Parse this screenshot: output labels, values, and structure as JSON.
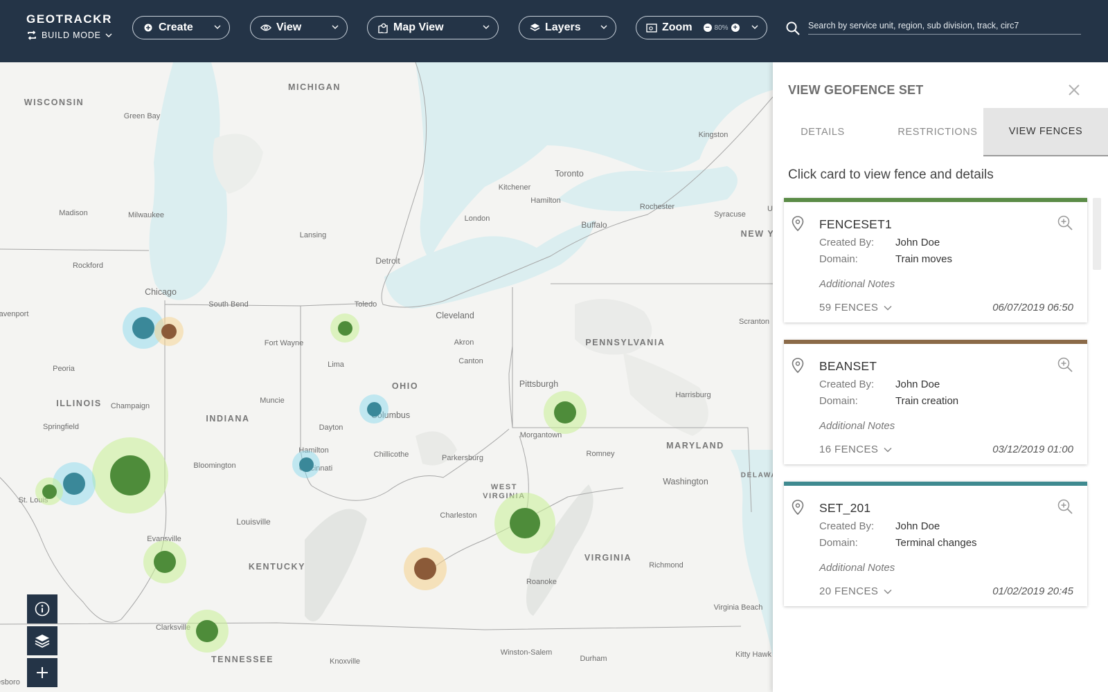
{
  "app": {
    "brand": "GEOTRACKR",
    "mode": "BUILD MODE"
  },
  "toolbar": {
    "create": "Create",
    "view": "View",
    "map_view": "Map View",
    "layers": "Layers",
    "zoom": "Zoom",
    "zoom_level": "80%",
    "search_placeholder": "Search by service unit, region, sub division, track, circ7"
  },
  "map": {
    "state_labels": {
      "wisconsin": "WISCONSIN",
      "michigan": "MICHIGAN",
      "illinois": "ILLINOIS",
      "indiana": "INDIANA",
      "ohio": "OHIO",
      "pennsylvania": "PENNSYLVANIA",
      "new_york": "NEW Y",
      "maryland": "MARYLAND",
      "delaware": "DELAWA",
      "west_virginia_1": "WEST",
      "west_virginia_2": "VIRGINIA",
      "kentucky": "KENTUCKY",
      "virginia": "VIRGINIA",
      "tennessee": "TENNESSEE"
    },
    "city_labels": {
      "green_bay": "Green Bay",
      "madison": "Madison",
      "milwaukee": "Milwaukee",
      "rockford": "Rockford",
      "chicago": "Chicago",
      "davenport": "avenport",
      "peoria": "Peoria",
      "champaign": "Champaign",
      "springfield": "Springfield",
      "st_louis": "St. Louis",
      "south_bend": "South Bend",
      "fort_wayne": "Fort Wayne",
      "muncie": "Muncie",
      "bloomington": "Bloomington",
      "lansing": "Lansing",
      "detroit": "Detroit",
      "toledo": "Toledo",
      "lima": "Lima",
      "dayton": "Dayton",
      "hamilton": "Hamilton",
      "cincinnati": "Cincinnati",
      "columbus": "Columbus",
      "chillicothe": "Chillicothe",
      "cleveland": "Cleveland",
      "akron": "Akron",
      "canton": "Canton",
      "parkersburg": "Parkersburg",
      "charleston": "Charleston",
      "louisville": "Louisville",
      "evansville": "Evansville",
      "clarksville": "Clarksville",
      "knoxville": "Knoxville",
      "kitchener": "Kitchener",
      "london": "London",
      "hamilton_on": "Hamilton",
      "toronto": "Toronto",
      "kingston": "Kingston",
      "buffalo": "Buffalo",
      "rochester": "Rochester",
      "syracuse": "Syracuse",
      "scranton": "Scranton",
      "pittsburgh": "Pittsburgh",
      "harrisburg": "Harrisburg",
      "morgantown": "Morgantown",
      "romney": "Romney",
      "washington": "Washington",
      "richmond": "Richmond",
      "roanoke": "Roanoke",
      "virginia_beach": "Virginia Beach",
      "winston_salem": "Winston-Salem",
      "durham": "Durham",
      "kitty_hawk": "Kitty Hawk",
      "u_edge": "U",
      "nesboro": "esboro"
    },
    "colors": {
      "green": "#4e8c3a",
      "teal": "#3a8899",
      "brown": "#8b5a38"
    },
    "controls": [
      "info-icon",
      "layers-icon",
      "plus-icon"
    ]
  },
  "panel": {
    "title": "VIEW GEOFENCE SET",
    "tabs": [
      "DETAILS",
      "RESTRICTIONS",
      "VIEW FENCES"
    ],
    "active_tab": "VIEW FENCES",
    "hint": "Click card to view fence and details",
    "created_by_label": "Created By:",
    "domain_label": "Domain:",
    "notes_label": "Additional Notes",
    "cards": [
      {
        "name": "FENCESET1",
        "created_by": "John Doe",
        "domain": "Train moves",
        "fences": "59 FENCES",
        "date": "06/07/2019 06:50",
        "accent": "#5b8c47"
      },
      {
        "name": "BEANSET",
        "created_by": "John Doe",
        "domain": "Train creation",
        "fences": "16 FENCES",
        "date": "03/12/2019 01:00",
        "accent": "#8b6a48"
      },
      {
        "name": "SET_201",
        "created_by": "John Doe",
        "domain": "Terminal changes",
        "fences": "20 FENCES",
        "date": "01/02/2019 20:45",
        "accent": "#3f8a90"
      }
    ]
  }
}
